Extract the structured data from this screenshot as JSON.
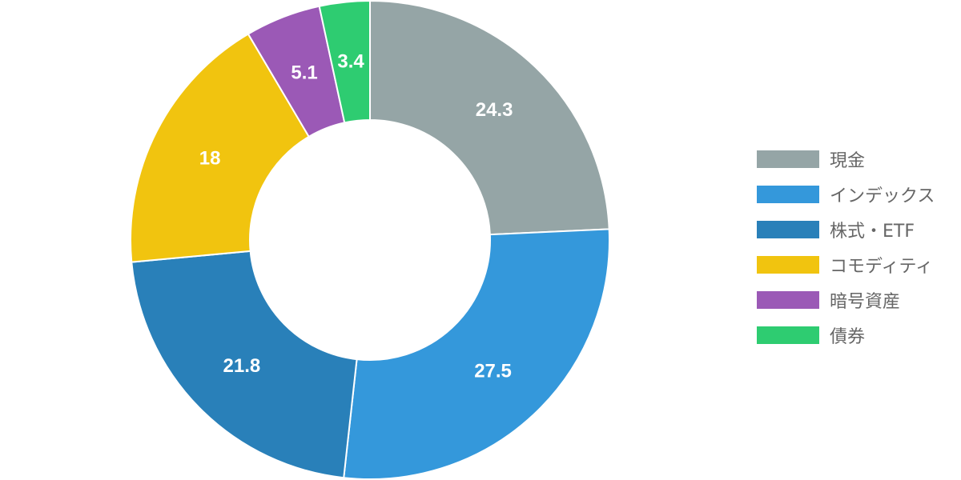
{
  "chart_data": {
    "type": "pie",
    "variant": "doughnut",
    "categories": [
      "現金",
      "インデックス",
      "株式・ETF",
      "コモディティ",
      "暗号資産",
      "債券"
    ],
    "values": [
      24.3,
      27.5,
      21.8,
      18,
      5.1,
      3.4
    ],
    "value_labels": [
      "24.3",
      "27.5",
      "21.8",
      "18",
      "5.1",
      "3.4"
    ],
    "colors": [
      "#95a5a6",
      "#3498db",
      "#2980b9",
      "#f1c40f",
      "#9b59b6",
      "#2ecc71"
    ],
    "label_color": "#ffffff",
    "slice_border_color": "#ffffff",
    "legend_position": "right",
    "start_angle": "top",
    "direction": "clockwise"
  }
}
